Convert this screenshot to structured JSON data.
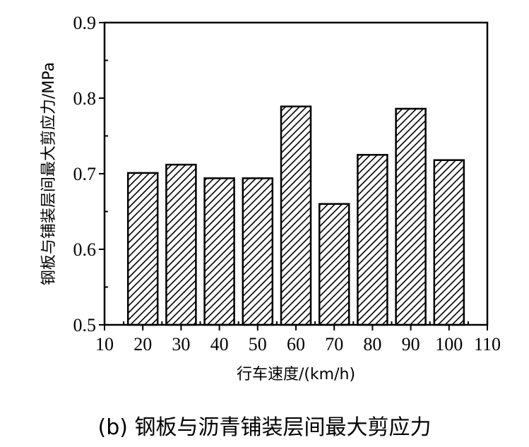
{
  "chart_data": {
    "type": "bar",
    "categories": [
      "20",
      "30",
      "40",
      "50",
      "60",
      "70",
      "80",
      "90",
      "100"
    ],
    "x": [
      20,
      30,
      40,
      50,
      60,
      70,
      80,
      90,
      100
    ],
    "values": [
      0.701,
      0.712,
      0.694,
      0.694,
      0.789,
      0.66,
      0.725,
      0.786,
      0.718
    ],
    "xlabel": "行车速度/(km/h)",
    "ylabel": "钢板与铺装层间最大剪应力/MPa",
    "xlim": [
      10,
      110
    ],
    "ylim": [
      0.5,
      0.9
    ],
    "xticks": [
      "10",
      "20",
      "30",
      "40",
      "50",
      "60",
      "70",
      "80",
      "90",
      "100",
      "110"
    ],
    "yticks": [
      "0.5",
      "0.6",
      "0.7",
      "0.8",
      "0.9"
    ],
    "bar_fill": "hatched",
    "bar_color": "#000000",
    "grid": false,
    "legend": "none"
  },
  "caption": "(b) 钢板与沥青铺装层间最大剪应力"
}
